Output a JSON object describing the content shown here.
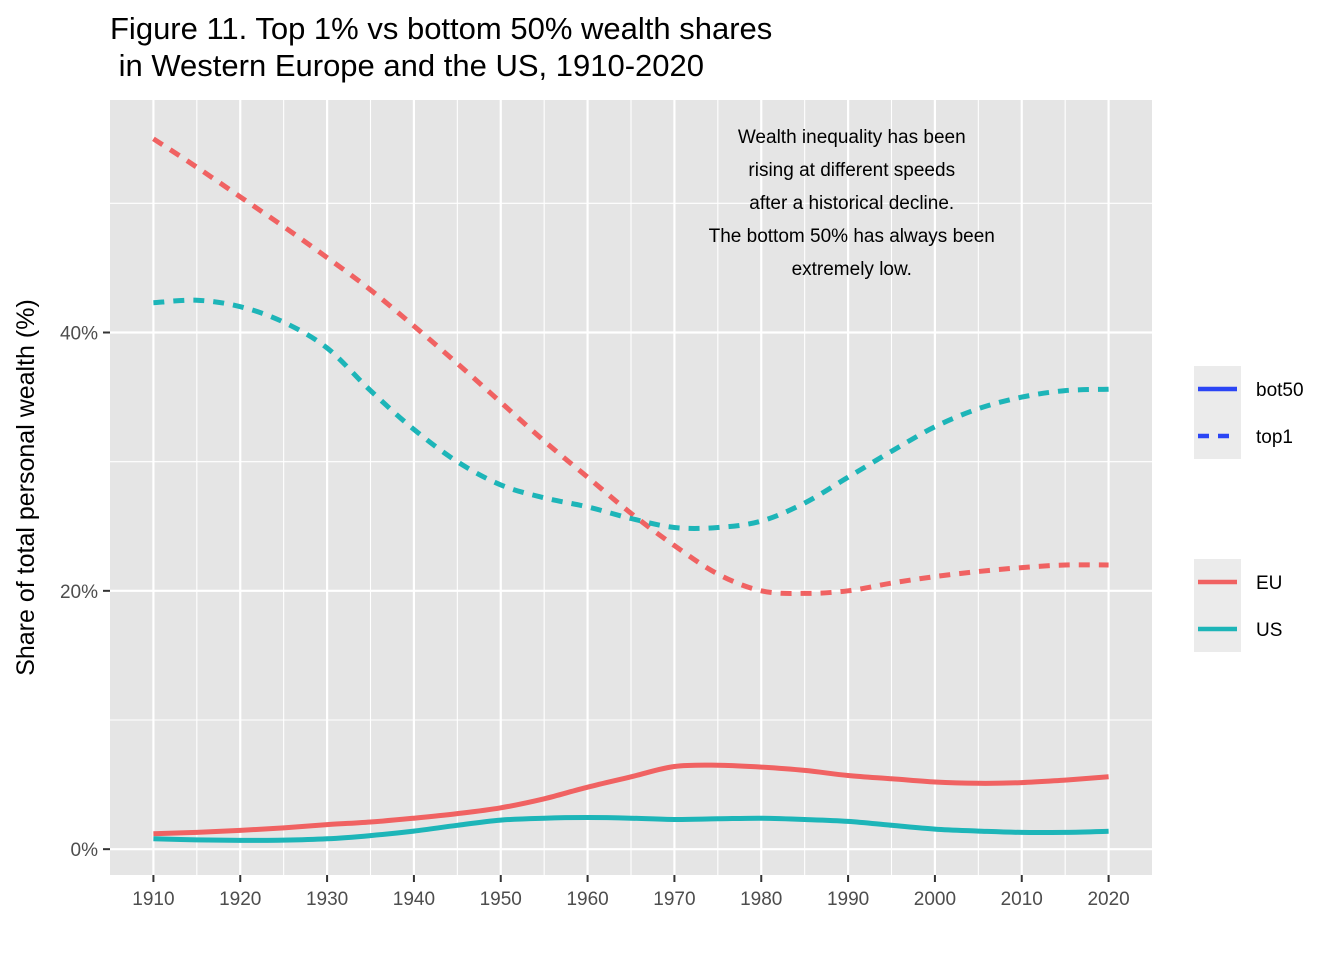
{
  "chart_data": {
    "type": "line",
    "title_lines": [
      "Figure 11. Top 1% vs bottom 50% wealth shares",
      " in Western Europe and the US, 1910-2020"
    ],
    "xlabel": "",
    "ylabel": "Share of total personal wealth (%)",
    "xlim": [
      1905,
      2025
    ],
    "ylim": [
      -2,
      58
    ],
    "x_ticks": [
      1910,
      1920,
      1930,
      1940,
      1950,
      1960,
      1970,
      1980,
      1990,
      2000,
      2010,
      2020
    ],
    "y_ticks": [
      0,
      20,
      40
    ],
    "y_tick_labels": [
      "0%",
      "20%",
      "40%"
    ],
    "grid": true,
    "annotation_lines": [
      "Wealth inequality has been",
      "rising at different speeds",
      "after a historical decline.",
      "The bottom 50% has always been",
      "extremely low."
    ],
    "colors": {
      "EU": "#F06262",
      "US": "#1DB5B8",
      "legend_key": "#2B45F5",
      "panel": "#E5E5E5",
      "grid": "#FFFFFF",
      "legend_bg": "#EBEBEB"
    },
    "legend_linetype": [
      {
        "label": "bot50",
        "dash": "solid"
      },
      {
        "label": "top1",
        "dash": "dashed"
      }
    ],
    "legend_color": [
      {
        "label": "EU",
        "color": "#F06262"
      },
      {
        "label": "US",
        "color": "#1DB5B8"
      }
    ],
    "series": [
      {
        "region": "EU",
        "measure": "top1",
        "dash": "dashed",
        "x": [
          1910,
          1915,
          1920,
          1925,
          1930,
          1935,
          1940,
          1945,
          1950,
          1955,
          1960,
          1965,
          1970,
          1975,
          1980,
          1985,
          1990,
          1995,
          2000,
          2005,
          2010,
          2015,
          2020
        ],
        "y": [
          55.0,
          52.8,
          50.5,
          48.2,
          45.8,
          43.3,
          40.5,
          37.6,
          34.6,
          31.6,
          28.8,
          26.0,
          23.5,
          21.3,
          20.0,
          19.8,
          20.0,
          20.6,
          21.1,
          21.5,
          21.8,
          22.0,
          22.0
        ]
      },
      {
        "region": "US",
        "measure": "top1",
        "dash": "dashed",
        "x": [
          1910,
          1915,
          1920,
          1925,
          1930,
          1935,
          1940,
          1945,
          1950,
          1955,
          1960,
          1965,
          1970,
          1975,
          1980,
          1985,
          1990,
          1995,
          2000,
          2005,
          2010,
          2015,
          2020
        ],
        "y": [
          42.3,
          42.5,
          42.0,
          40.8,
          38.8,
          35.5,
          32.5,
          30.0,
          28.2,
          27.2,
          26.5,
          25.6,
          24.9,
          24.9,
          25.4,
          26.8,
          28.8,
          30.8,
          32.7,
          34.1,
          35.0,
          35.5,
          35.6
        ]
      },
      {
        "region": "EU",
        "measure": "bot50",
        "dash": "solid",
        "x": [
          1910,
          1915,
          1920,
          1925,
          1930,
          1935,
          1940,
          1945,
          1950,
          1955,
          1960,
          1965,
          1970,
          1975,
          1980,
          1985,
          1990,
          1995,
          2000,
          2005,
          2010,
          2015,
          2020
        ],
        "y": [
          1.2,
          1.3,
          1.45,
          1.65,
          1.9,
          2.1,
          2.4,
          2.75,
          3.2,
          3.9,
          4.8,
          5.6,
          6.4,
          6.5,
          6.35,
          6.1,
          5.7,
          5.45,
          5.2,
          5.1,
          5.15,
          5.35,
          5.6
        ]
      },
      {
        "region": "US",
        "measure": "bot50",
        "dash": "solid",
        "x": [
          1910,
          1915,
          1920,
          1925,
          1930,
          1935,
          1940,
          1945,
          1950,
          1955,
          1960,
          1965,
          1970,
          1975,
          1980,
          1985,
          1990,
          1995,
          2000,
          2005,
          2010,
          2015,
          2020
        ],
        "y": [
          0.8,
          0.72,
          0.68,
          0.7,
          0.8,
          1.05,
          1.4,
          1.85,
          2.25,
          2.4,
          2.45,
          2.4,
          2.3,
          2.35,
          2.4,
          2.3,
          2.15,
          1.85,
          1.55,
          1.4,
          1.3,
          1.3,
          1.38
        ]
      }
    ]
  }
}
